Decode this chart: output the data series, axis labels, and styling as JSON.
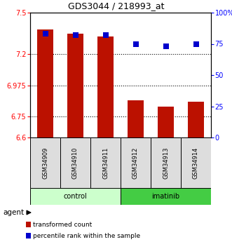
{
  "title": "GDS3044 / 218993_at",
  "categories": [
    "GSM34909",
    "GSM34910",
    "GSM34911",
    "GSM34912",
    "GSM34913",
    "GSM34914"
  ],
  "bar_values": [
    7.38,
    7.35,
    7.33,
    6.87,
    6.82,
    6.86
  ],
  "percentile_values": [
    83,
    82,
    82,
    75,
    73,
    75
  ],
  "bar_color": "#bb1100",
  "dot_color": "#0000cc",
  "ylim_left": [
    6.6,
    7.5
  ],
  "ylim_right": [
    0,
    100
  ],
  "yticks_left": [
    6.6,
    6.75,
    6.975,
    7.2,
    7.5
  ],
  "ytick_labels_left": [
    "6.6",
    "6.75",
    "6.975",
    "7.2",
    "7.5"
  ],
  "yticks_right": [
    0,
    25,
    50,
    75,
    100
  ],
  "ytick_labels_right": [
    "0",
    "25",
    "50",
    "75",
    "100%"
  ],
  "groups": [
    {
      "label": "control",
      "indices": [
        0,
        1,
        2
      ],
      "color": "#ccffcc"
    },
    {
      "label": "imatinib",
      "indices": [
        3,
        4,
        5
      ],
      "color": "#44cc44"
    }
  ],
  "agent_label": "agent",
  "legend": [
    {
      "label": "transformed count",
      "color": "#bb1100"
    },
    {
      "label": "percentile rank within the sample",
      "color": "#0000cc"
    }
  ],
  "bar_bottom": 6.6,
  "bar_width": 0.55,
  "dot_size": 40,
  "grid_yticks": [
    7.2,
    6.975,
    6.75
  ],
  "title_fontsize": 9,
  "tick_fontsize": 7,
  "label_fontsize": 7
}
